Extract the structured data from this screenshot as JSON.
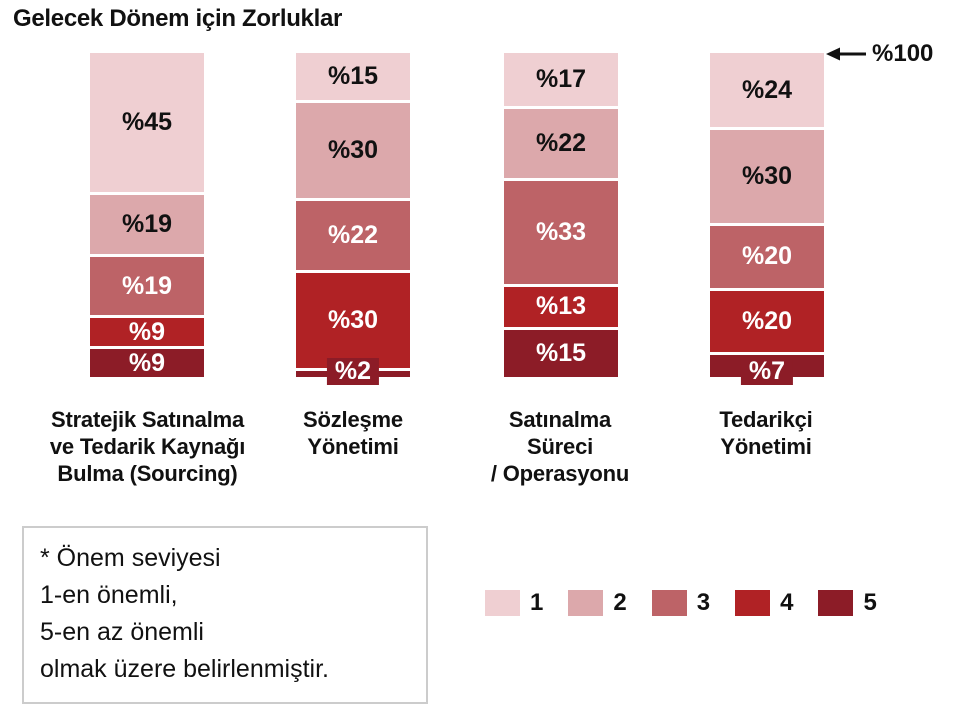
{
  "title": "Gelecek Dönem için Zorluklar",
  "annotation": {
    "label": "%100",
    "arrow_icon": "left-arrow",
    "color": "#111111"
  },
  "note": {
    "lines": [
      "* Önem seviyesi",
      "1-en önemli,",
      "5-en az önemli",
      "olmak üzere belirlenmiştir."
    ]
  },
  "legend": {
    "position": "bottom-right"
  },
  "chart_data": {
    "type": "bar",
    "stacked": true,
    "orientation": "vertical",
    "unit": "percent",
    "value_prefix": "%",
    "axis_max_label": "%100",
    "grid": false,
    "title": "Gelecek Dönem için Zorluklar",
    "categories": [
      {
        "name": "Stratejik Satınalma ve Tedarik Kaynağı Bulma (Sourcing)",
        "lines": [
          "Stratejik Satınalma",
          "ve Tedarik Kaynağı",
          "Bulma (Sourcing)"
        ]
      },
      {
        "name": "Sözleşme Yönetimi",
        "lines": [
          "Sözleşme",
          "Yönetimi"
        ]
      },
      {
        "name": "Satınalma Süreci / Operasyonu",
        "lines": [
          "Satınalma",
          "Süreci",
          "/ Operasyonu"
        ]
      },
      {
        "name": "Tedarikçi Yönetimi",
        "lines": [
          "Tedarikçi",
          "Yönetimi"
        ]
      }
    ],
    "series": [
      {
        "name": "1",
        "color": "#efcfd2",
        "label_color": "#111111",
        "values": [
          45,
          15,
          17,
          24
        ]
      },
      {
        "name": "2",
        "color": "#dca8ab",
        "label_color": "#111111",
        "values": [
          19,
          30,
          22,
          30
        ]
      },
      {
        "name": "3",
        "color": "#bd6367",
        "label_color": "#ffffff",
        "values": [
          19,
          22,
          33,
          20
        ]
      },
      {
        "name": "4",
        "color": "#b02225",
        "label_color": "#ffffff",
        "values": [
          9,
          30,
          13,
          20
        ]
      },
      {
        "name": "5",
        "color": "#8c1c27",
        "label_color": "#ffffff",
        "values": [
          9,
          2,
          15,
          7
        ]
      }
    ],
    "callout_threshold_percent": 8,
    "legend_entries": [
      "1",
      "2",
      "3",
      "4",
      "5"
    ],
    "footnote": "* Önem seviyesi 1-en önemli, 5-en az önemli olmak üzere belirlenmiştir."
  }
}
